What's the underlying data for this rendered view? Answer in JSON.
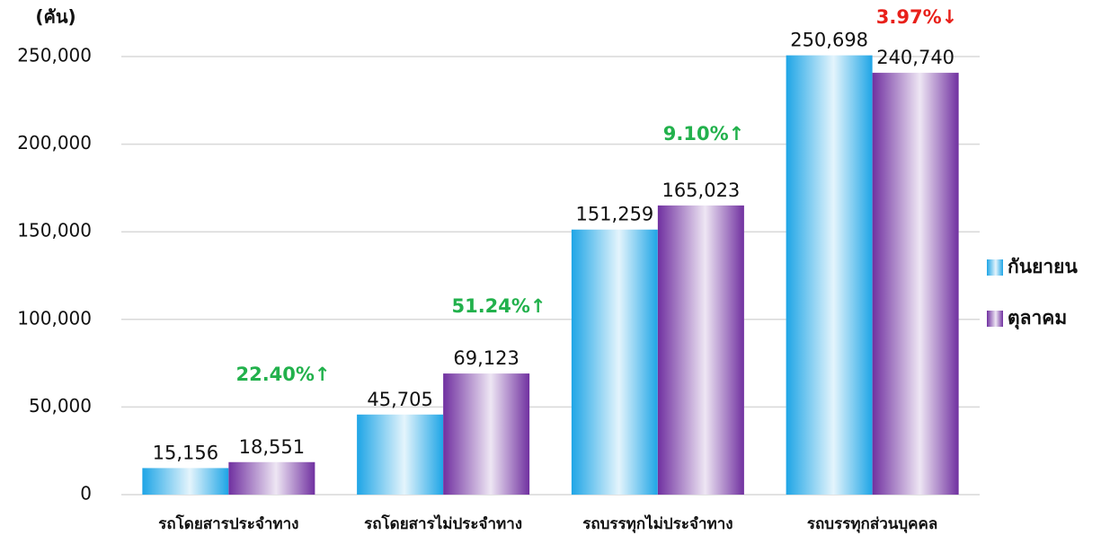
{
  "chart_data": {
    "type": "bar",
    "y_label": "(คัน)",
    "categories": [
      "รถโดยสารประจำทาง",
      "รถโดยสารไม่ประจำทาง",
      "รถบรรทุกไม่ประจำทาง",
      "รถบรรทุกส่วนบุคคล"
    ],
    "series": [
      {
        "name": "กันยายน",
        "color": "#1ea5e6",
        "values": [
          15156,
          45705,
          151259,
          250698
        ],
        "value_labels": [
          "15,156",
          "45,705",
          "151,259",
          "250,698"
        ]
      },
      {
        "name": "ตุลาคม",
        "color": "#7030a0",
        "values": [
          18551,
          69123,
          165023,
          240740
        ],
        "value_labels": [
          "18,551",
          "69,123",
          "165,023",
          "240,740"
        ]
      }
    ],
    "annotations": [
      {
        "text": "22.40%↑",
        "color": "#22b14c"
      },
      {
        "text": "51.24%↑",
        "color": "#22b14c"
      },
      {
        "text": "9.10%↑",
        "color": "#22b14c"
      },
      {
        "text": "3.97%↓",
        "color": "#e8201a"
      }
    ],
    "ylim": [
      0,
      250000
    ],
    "yticks": [
      0,
      {
        "value": 50000,
        "label": "50,000"
      },
      {
        "value": 100000,
        "label": "100,000"
      },
      {
        "value": 150000,
        "label": "150,000"
      },
      {
        "value": 200000,
        "label": "200,000"
      },
      {
        "value": 250000,
        "label": "250,000"
      }
    ],
    "grid": true,
    "legend": "right"
  }
}
